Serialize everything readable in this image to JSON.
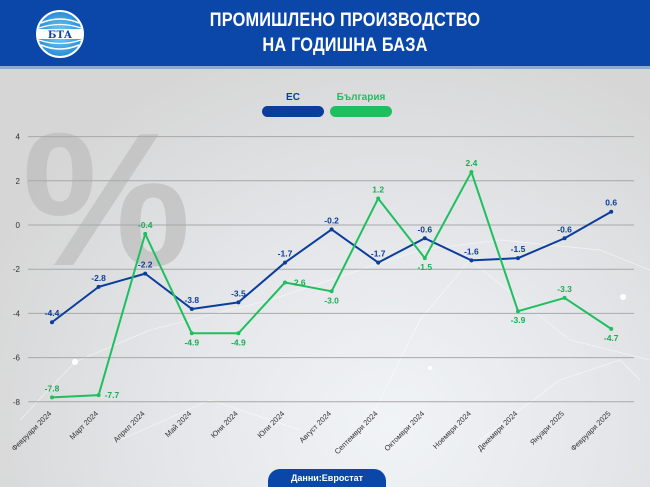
{
  "header": {
    "logo_text": "БТА",
    "title_line1": "ПРОМИШЛЕНО ПРОИЗВОДСТВО",
    "title_line2": "НА ГОДИШНА БАЗА"
  },
  "legend": {
    "items": [
      {
        "label": "ЕС",
        "color": "#0b3d9a"
      },
      {
        "label": "България",
        "color": "#1fbf5f"
      }
    ]
  },
  "watermark": "%",
  "source": "Данни:Евростат",
  "colors": {
    "header_bg": "#0a47a8",
    "eu": "#0b3d9a",
    "bulgaria": "#1fbf5f"
  },
  "chart_data": {
    "type": "line",
    "title": "ПРОМИШЛЕНО ПРОИЗВОДСТВО НА ГОДИШНА БАЗА",
    "xlabel": "",
    "ylabel": "%",
    "ylim": [
      -8,
      4
    ],
    "yticks": [
      4,
      2,
      0,
      -2,
      -4,
      -6,
      -8
    ],
    "grid": true,
    "legend_position": "top-center",
    "categories": [
      "Февруари 2024",
      "Март 2024",
      "Април 2024",
      "Май 2024",
      "Юни 2024",
      "Юли 2024",
      "Август 2024",
      "Септември 2024",
      "Октомври 2024",
      "Ноември 2024",
      "Декември 2024",
      "Януари 2025",
      "Февруари 2025"
    ],
    "series": [
      {
        "name": "ЕС",
        "values": [
          -4.4,
          -2.8,
          -2.2,
          -3.8,
          -3.5,
          -1.7,
          -0.2,
          -1.7,
          -0.6,
          -1.6,
          -1.5,
          -0.6,
          0.6
        ]
      },
      {
        "name": "България",
        "values": [
          -7.8,
          -7.7,
          -0.4,
          -4.9,
          -4.9,
          -2.6,
          -3.0,
          1.2,
          -1.5,
          2.4,
          -3.9,
          -3.3,
          -4.7
        ]
      }
    ]
  }
}
